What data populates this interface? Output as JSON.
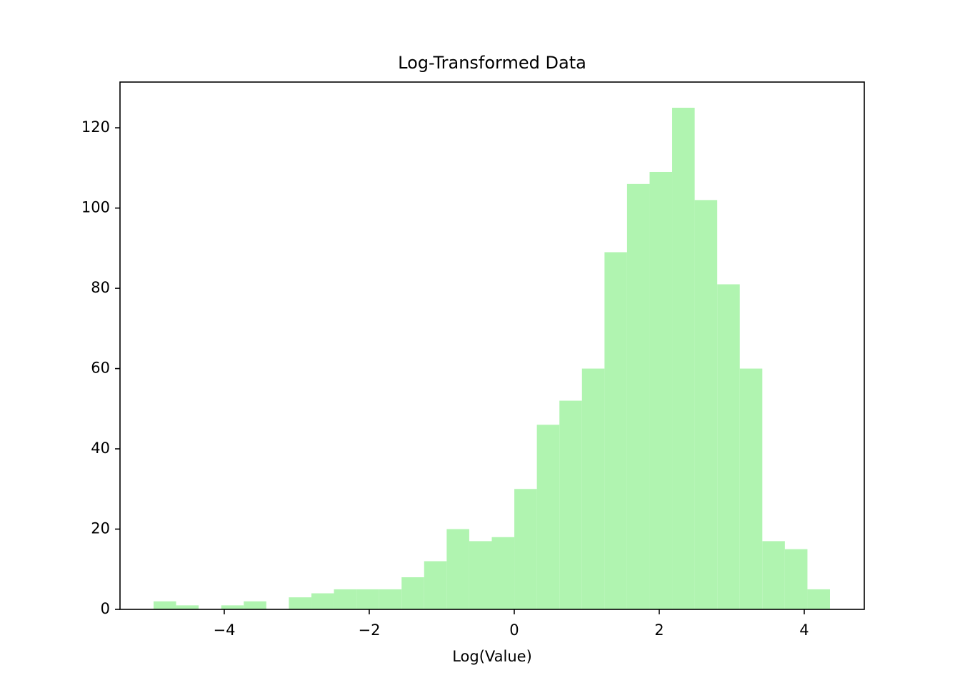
{
  "chart_data": {
    "type": "histogram",
    "title": "Log-Transformed Data",
    "xlabel": "Log(Value)",
    "bins": [
      -4.975,
      -4.664,
      -4.353,
      -4.042,
      -3.731,
      -3.42,
      -3.109,
      -2.798,
      -2.487,
      -2.176,
      -1.865,
      -1.554,
      -1.243,
      -0.932,
      -0.621,
      -0.31,
      0.001,
      0.312,
      0.623,
      0.934,
      1.245,
      1.556,
      1.867,
      2.178,
      2.489,
      2.8,
      3.111,
      3.422,
      3.733,
      4.044,
      4.355
    ],
    "counts": [
      2,
      1,
      0,
      1,
      2,
      0,
      3,
      4,
      5,
      5,
      5,
      8,
      12,
      20,
      17,
      18,
      30,
      46,
      52,
      60,
      89,
      106,
      109,
      125,
      102,
      81,
      60,
      17,
      15,
      5
    ],
    "color": "#b0f4b0",
    "xlim": [
      -5.438,
      4.828
    ],
    "xticks": [
      {
        "value": -4,
        "label": "−4"
      },
      {
        "value": -2,
        "label": "−2"
      },
      0,
      2,
      4
    ],
    "ylim": [
      0,
      131.4
    ],
    "yticks": [
      0,
      20,
      40,
      60,
      80,
      100,
      120
    ]
  }
}
